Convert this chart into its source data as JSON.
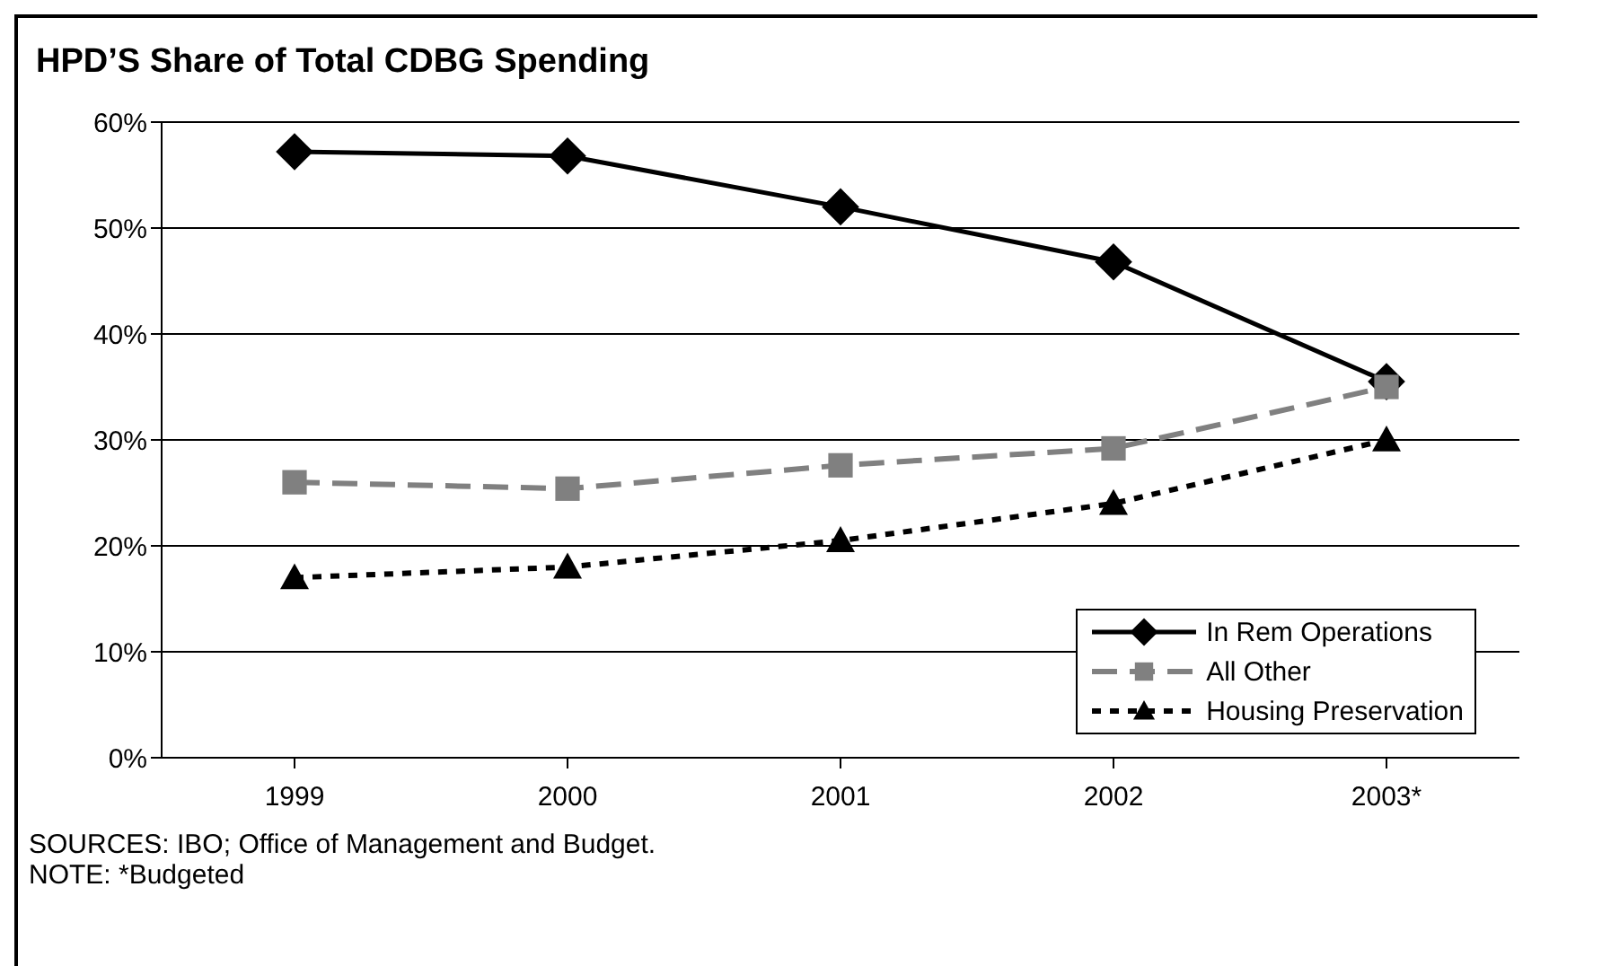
{
  "chart_data": {
    "type": "line",
    "title": "HPD’S Share of Total CDBG Spending",
    "categories": [
      "1999",
      "2000",
      "2001",
      "2002",
      "2003*"
    ],
    "series": [
      {
        "name": "In Rem Operations",
        "color": "#000000",
        "values": [
          57.2,
          56.8,
          52.0,
          46.8,
          35.5
        ],
        "marker": "diamond",
        "line_style": "solid"
      },
      {
        "name": "All Other",
        "color": "#808080",
        "values": [
          26.0,
          25.4,
          27.6,
          29.2,
          35.0
        ],
        "marker": "square",
        "line_style": "dashed"
      },
      {
        "name": "Housing Preservation",
        "color": "#000000",
        "values": [
          17.0,
          18.0,
          20.5,
          24.0,
          30.0
        ],
        "marker": "triangle",
        "line_style": "dotted"
      }
    ],
    "ylim": [
      0,
      60
    ],
    "yticks": [
      {
        "value": 0,
        "label": "0%"
      },
      {
        "value": 10,
        "label": "10%"
      },
      {
        "value": 20,
        "label": "20%"
      },
      {
        "value": 30,
        "label": "30%"
      },
      {
        "value": 40,
        "label": "40%"
      },
      {
        "value": 50,
        "label": "50%"
      },
      {
        "value": 60,
        "label": "60%"
      }
    ],
    "grid": "y",
    "legend": "bottom right",
    "annotations": [
      "SOURCES: IBO; Office of Management and Budget.",
      "NOTE: *Budgeted"
    ]
  }
}
